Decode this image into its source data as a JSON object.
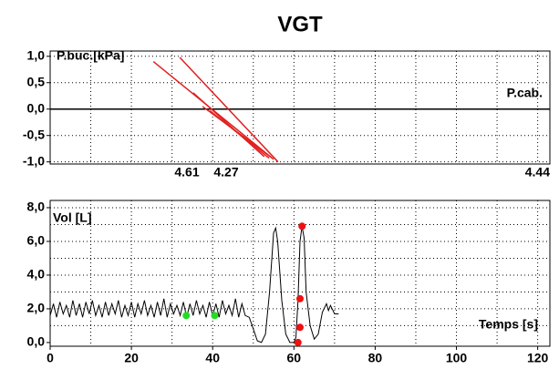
{
  "chart_data": [
    {
      "type": "line",
      "title": "VGT",
      "ylabel": "P.buc.[kPa]",
      "xlabel": "P.cab.",
      "annotations": [
        "4.61",
        "4.27",
        "4.44"
      ],
      "xlim": [
        0,
        123
      ],
      "ylim": [
        -1.04,
        1.1
      ],
      "yticks": [
        {
          "value": 1,
          "label": "1,0"
        },
        {
          "value": 0.5,
          "label": "0,5"
        },
        {
          "value": 0,
          "label": "0,0"
        },
        {
          "value": -0.5,
          "label": "-0,5"
        },
        {
          "value": -1,
          "label": "-1,0"
        }
      ],
      "xgrid": [
        10,
        20,
        30,
        40,
        50,
        60,
        70,
        80,
        90,
        100,
        110,
        120
      ],
      "ygrid": [
        1,
        0.5,
        -0.5,
        -1
      ],
      "zero_line": true,
      "series": [
        {
          "color": "#e02020",
          "x": [
            25.4,
            55.0
          ],
          "values": [
            0.9,
            -0.95
          ]
        },
        {
          "color": "#e02020",
          "x": [
            31.9,
            56.1
          ],
          "values": [
            0.98,
            -1.0
          ]
        },
        {
          "color": "#e02020",
          "x": [
            35.2,
            52.7
          ],
          "values": [
            0.31,
            -0.9
          ]
        },
        {
          "color": "#e02020",
          "x": [
            39.3,
            53.9
          ],
          "values": [
            -0.03,
            -0.93
          ]
        },
        {
          "color": "#e02020",
          "x": [
            37.5,
            54.5
          ],
          "values": [
            0.05,
            -0.92
          ]
        }
      ]
    },
    {
      "type": "line",
      "ylabel": "Vol [L]",
      "xlabel": "Temps [s]",
      "xlim": [
        0,
        123
      ],
      "ylim": [
        -0.22,
        8.43
      ],
      "xticks": [
        0,
        20,
        40,
        60,
        80,
        100,
        120
      ],
      "yticks": [
        {
          "value": 8,
          "label": "8,0"
        },
        {
          "value": 6,
          "label": "6,0"
        },
        {
          "value": 4,
          "label": "4,0"
        },
        {
          "value": 2,
          "label": "2,0"
        },
        {
          "value": 0,
          "label": "0,0"
        }
      ],
      "xgrid": [
        10,
        20,
        30,
        40,
        50,
        60,
        70,
        80,
        90,
        100,
        110,
        120
      ],
      "ygrid": [
        1,
        2,
        3,
        4,
        5,
        6,
        7,
        8
      ],
      "zero_line": false,
      "series": [
        {
          "color": "#000000",
          "x": [
            0,
            0.8,
            1.6,
            2.4,
            3.2,
            4,
            4.8,
            5.6,
            6.4,
            7.2,
            8,
            8.8,
            9.6,
            10.4,
            11.2,
            12,
            12.8,
            13.6,
            14.4,
            15.2,
            16,
            16.8,
            17.6,
            18.4,
            19.2,
            20,
            20.8,
            21.6,
            22.4,
            23.2,
            24,
            24.8,
            25.6,
            26.4,
            27.2,
            28,
            28.8,
            29.6,
            30.4,
            31.2,
            32,
            32.8,
            33.6,
            34.4,
            35.2,
            36,
            36.8,
            37.6,
            38.4,
            39.2,
            40,
            40.8,
            41.6,
            42.4,
            43.2,
            44,
            44.8,
            45.6,
            46.4,
            47.2,
            48,
            49,
            50,
            51,
            52,
            53,
            54,
            55,
            55.5,
            56,
            57,
            58,
            59,
            60,
            60.5,
            61,
            61.5,
            62,
            62.5,
            63,
            64,
            65,
            66,
            67,
            68,
            68.5,
            69,
            70,
            71
          ],
          "values": [
            1.6,
            2.3,
            1.5,
            2.4,
            1.7,
            2.2,
            1.5,
            2.5,
            1.6,
            2.3,
            1.5,
            2.4,
            1.7,
            2.5,
            1.6,
            2.2,
            1.5,
            2.4,
            1.6,
            2.3,
            1.7,
            2.5,
            1.5,
            2.2,
            1.6,
            2.4,
            1.5,
            2.3,
            1.7,
            2.5,
            1.6,
            2.2,
            1.5,
            2.4,
            1.6,
            2.6,
            1.5,
            2.3,
            1.7,
            2.2,
            1.6,
            2.4,
            1.5,
            2.3,
            1.6,
            2.5,
            1.7,
            2.2,
            1.5,
            2.4,
            1.6,
            2.3,
            1.5,
            2.5,
            1.7,
            2.2,
            1.6,
            2.6,
            1.5,
            2.3,
            1.6,
            1.5,
            0.8,
            0.1,
            0,
            0.5,
            3.0,
            6.5,
            6.8,
            6.0,
            2.5,
            0.5,
            0,
            0,
            0.3,
            2.5,
            6.0,
            6.9,
            6.2,
            3.0,
            1.0,
            0.2,
            0.5,
            1.8,
            2.3,
            1.9,
            2.2,
            1.7,
            1.7
          ]
        }
      ],
      "markers": [
        {
          "color": "#22dd22",
          "x": [
            33.5,
            40.5
          ],
          "values": [
            1.6,
            1.6
          ]
        },
        {
          "color": "#ee1111",
          "x": [
            61,
            61.5,
            61.5,
            62
          ],
          "values": [
            0,
            0.9,
            2.6,
            6.9
          ]
        }
      ]
    }
  ]
}
